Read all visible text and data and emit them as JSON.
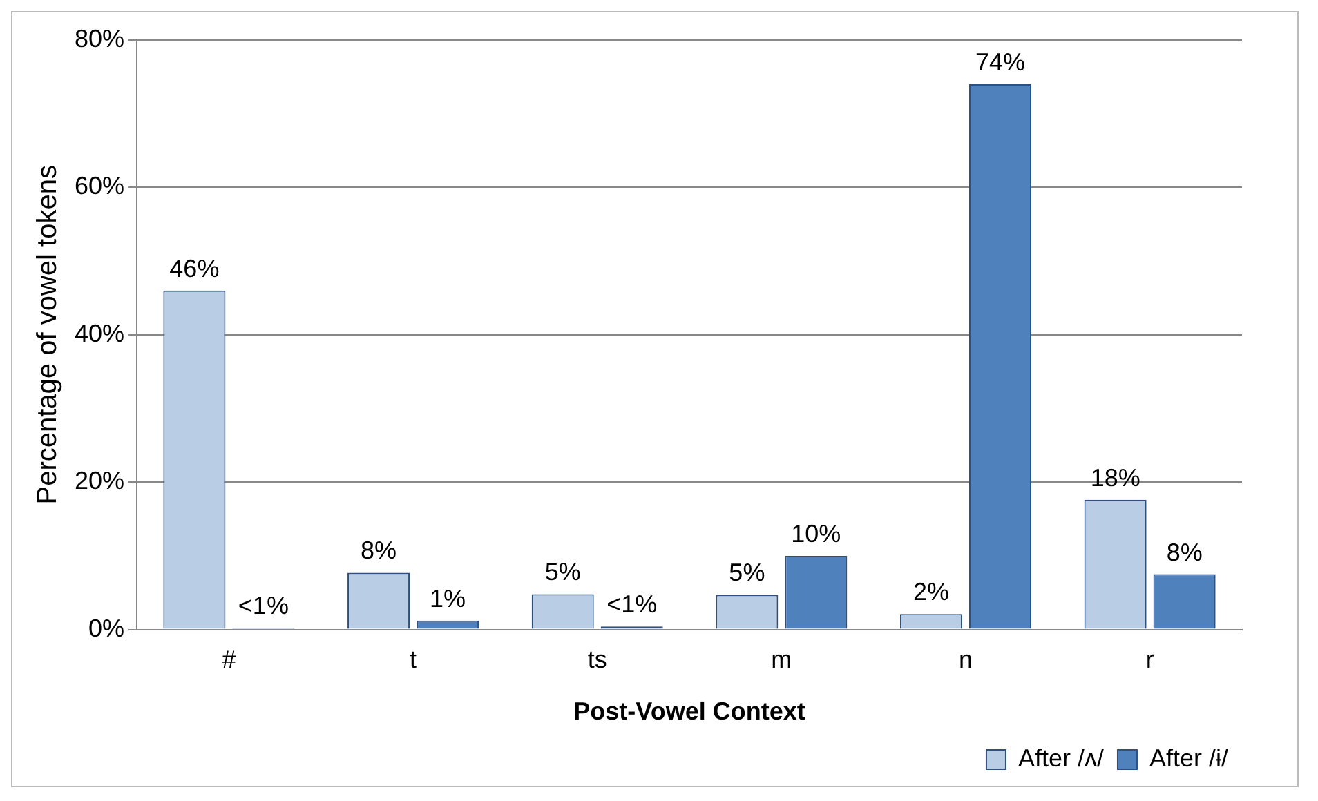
{
  "chart_data": {
    "type": "bar",
    "xlabel": "Post-Vowel Context",
    "ylabel": "Percentage of vowel tokens",
    "categories": [
      "#",
      "t",
      "ts",
      "m",
      "n",
      "r"
    ],
    "series": [
      {
        "name": "After /ʌ/",
        "color": "#b9cde5",
        "values": [
          46,
          7.7,
          4.8,
          4.7,
          2.1,
          17.6
        ],
        "value_labels": [
          "46%",
          "8%",
          "5%",
          "5%",
          "2%",
          "18%"
        ]
      },
      {
        "name": "After /ɨ/",
        "color": "#4f81bd",
        "values": [
          0.2,
          1.2,
          0.4,
          10,
          74,
          7.5
        ],
        "value_labels": [
          "<1%",
          "1%",
          "<1%",
          "10%",
          "74%",
          "8%"
        ]
      }
    ],
    "ylim": [
      0,
      80
    ],
    "yticks": [
      {
        "value": 0,
        "label": "0%"
      },
      {
        "value": 20,
        "label": "20%"
      },
      {
        "value": 40,
        "label": "40%"
      },
      {
        "value": 60,
        "label": "60%"
      },
      {
        "value": 80,
        "label": "80%"
      }
    ],
    "grid": "y",
    "legend": "bottom right"
  }
}
